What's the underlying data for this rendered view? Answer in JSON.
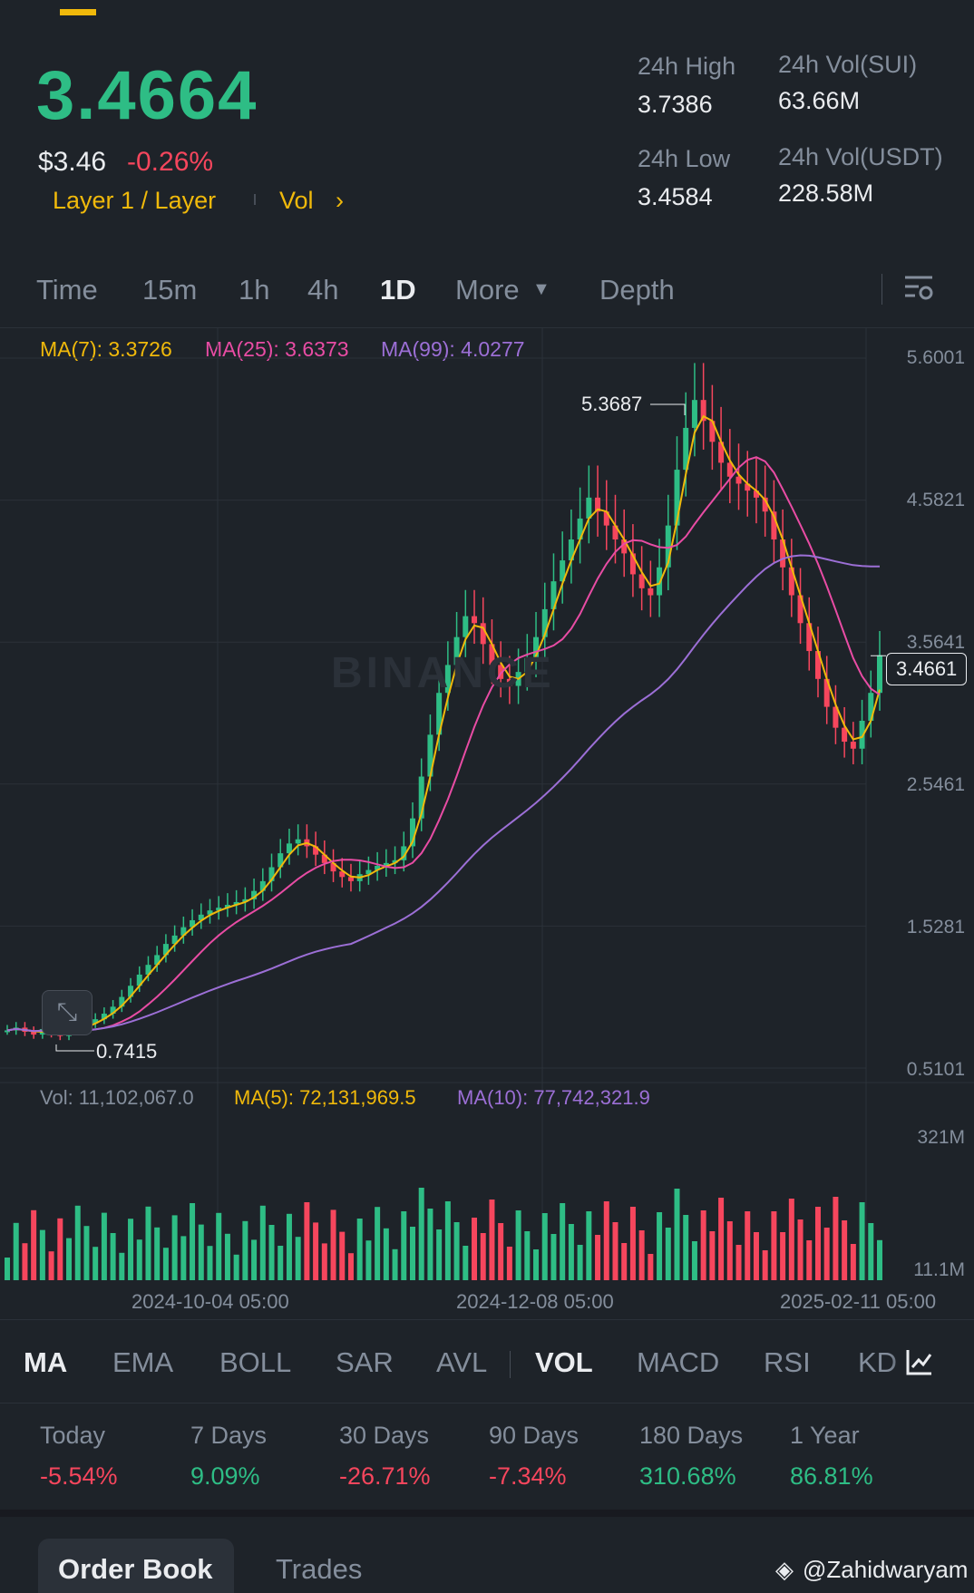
{
  "header": {
    "last_price": "3.4664",
    "usd_price": "$3.46",
    "change_pct": "-0.26%",
    "tag_category": "Layer 1 / Layer",
    "tag_vol": "Vol",
    "high_label": "24h High",
    "high_value": "3.7386",
    "low_label": "24h Low",
    "low_value": "3.4584",
    "vol_base_label": "24h Vol(SUI)",
    "vol_base_value": "63.66M",
    "vol_quote_label": "24h Vol(USDT)",
    "vol_quote_value": "228.58M"
  },
  "timeframes": [
    "Time",
    "15m",
    "1h",
    "4h",
    "1D",
    "More",
    "Depth"
  ],
  "active_timeframe": "1D",
  "ma_legend": {
    "ma7": "MA(7): 3.3726",
    "ma25": "MA(25): 3.6373",
    "ma99": "MA(99): 4.0277"
  },
  "vol_legend": {
    "vol": "Vol: 11,102,067.0",
    "ma5": "MA(5): 72,131,969.5",
    "ma10": "MA(10): 77,742,321.9"
  },
  "indicator_tabs": [
    "MA",
    "EMA",
    "BOLL",
    "SAR",
    "AVL",
    "VOL",
    "MACD",
    "RSI",
    "KD"
  ],
  "performance": [
    {
      "label": "Today",
      "value": "-5.54%"
    },
    {
      "label": "7 Days",
      "value": "9.09%"
    },
    {
      "label": "30 Days",
      "value": "-26.71%"
    },
    {
      "label": "90 Days",
      "value": "-7.34%"
    },
    {
      "label": "180 Days",
      "value": "310.68%"
    },
    {
      "label": "1 Year",
      "value": "86.81%"
    }
  ],
  "bottom_tabs": {
    "order_book": "Order Book",
    "trades": "Trades"
  },
  "watermark": "BINANCE",
  "credit": "@Zahidwaryam",
  "colors": {
    "up": "#2ebd85",
    "down": "#f6465d",
    "ma7": "#f0b90b",
    "ma25": "#e84ca4",
    "ma99": "#9c6fd6",
    "accent": "#f0b90b"
  },
  "chart_data": {
    "type": "candlestick",
    "title": "",
    "price_axis_ticks": [
      "5.6001",
      "4.5821",
      "3.5641",
      "2.5461",
      "1.5281",
      "0.5101"
    ],
    "price_axis_range": [
      0.5101,
      5.6001
    ],
    "current_price_label": "3.4661",
    "high_marker": "5.3687",
    "low_marker": "0.7415",
    "x_tick_labels": [
      "2024-10-04 05:00",
      "2024-12-08 05:00",
      "2025-02-11 05:00"
    ],
    "volume_axis_ticks": [
      "321M",
      "11.1M"
    ],
    "closes": [
      0.78,
      0.8,
      0.77,
      0.75,
      0.79,
      0.76,
      0.74,
      0.78,
      0.8,
      0.83,
      0.86,
      0.9,
      0.95,
      1.02,
      1.1,
      1.18,
      1.25,
      1.32,
      1.4,
      1.46,
      1.52,
      1.57,
      1.61,
      1.64,
      1.66,
      1.68,
      1.7,
      1.72,
      1.78,
      1.85,
      1.95,
      2.05,
      2.12,
      2.15,
      2.1,
      2.04,
      1.98,
      1.92,
      1.88,
      1.85,
      1.9,
      1.93,
      1.96,
      1.98,
      2.0,
      2.1,
      2.3,
      2.6,
      2.9,
      3.2,
      3.4,
      3.6,
      3.75,
      3.7,
      3.55,
      3.4,
      3.3,
      3.25,
      3.35,
      3.45,
      3.6,
      3.8,
      4.0,
      4.15,
      4.3,
      4.45,
      4.6,
      4.5,
      4.4,
      4.3,
      4.2,
      4.05,
      3.95,
      3.9,
      4.1,
      4.4,
      4.8,
      5.1,
      5.3,
      5.15,
      5.0,
      4.85,
      4.75,
      4.7,
      4.65,
      4.6,
      4.5,
      4.3,
      4.1,
      3.9,
      3.7,
      3.5,
      3.3,
      3.1,
      2.95,
      2.85,
      2.8,
      3.0,
      3.2,
      3.47
    ],
    "ma7_last": 3.3726,
    "ma25_last": 3.6373,
    "ma99_last": 4.0277
  }
}
